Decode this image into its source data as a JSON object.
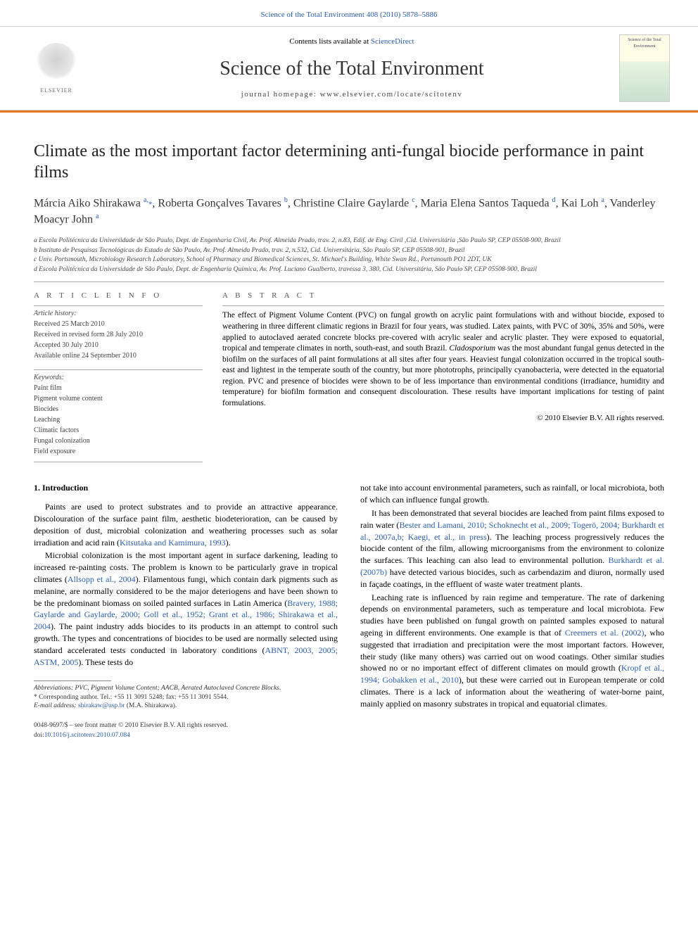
{
  "header": {
    "top_link": "Science of the Total Environment 408 (2010) 5878–5886",
    "contents_prefix": "Contents lists available at ",
    "contents_link": "ScienceDirect",
    "journal_title": "Science of the Total Environment",
    "homepage_prefix": "journal homepage: ",
    "homepage_url": "www.elsevier.com/locate/scitotenv",
    "elsevier_label": "ELSEVIER",
    "cover_title": "Science of the Total Environment"
  },
  "article": {
    "title": "Climate as the most important factor determining anti-fungal biocide performance in paint films",
    "authors_html": "Márcia Aiko Shirakawa <sup>a,</sup><span class='star-icon'>*</span>, Roberta Gonçalves Tavares <sup>b</sup>, Christine Claire Gaylarde <sup>c</sup>, Maria Elena Santos Taqueda <sup>d</sup>, Kai Loh <sup>a</sup>, Vanderley Moacyr John <sup>a</sup>",
    "affiliations": [
      "a Escola Politécnica da Universidade de São Paulo, Dept. de Engenharia Civil, Av. Prof. Almeida Prado, trav. 2, n.83, Edif. de Eng. Civil ,Cid. Universitária ,São Paulo SP, CEP 05508-900, Brazil",
      "b Instituto de Pesquisas Tecnológicas do Estado de São Paulo, Av. Prof. Almeida Prado, trav. 2, n.532, Cid. Universitária, São Paulo SP, CEP 05508-901, Brazil",
      "c Univ. Portsmouth, Microbiology Research Laboratory, School of Pharmacy and Biomedical Sciences, St. Michael's Building, White Swan Rd., Portsmouth PO1 2DT, UK",
      "d Escola Politécnica da Universidade de São Paulo, Dept. de Engenharia Química, Av. Prof. Luciano Gualberto, travessa 3, 380, Cid. Universitária, São Paulo SP, CEP 05508-900, Brazil"
    ]
  },
  "info": {
    "heading": "A R T I C L E   I N F O",
    "history_label": "Article history:",
    "history": [
      "Received 25 March 2010",
      "Received in revised form 28 July 2010",
      "Accepted 30 July 2010",
      "Available online 24 September 2010"
    ],
    "keywords_label": "Keywords:",
    "keywords": [
      "Paint film",
      "Pigment volume content",
      "Biocides",
      "Leaching",
      "Climatic factors",
      "Fungal colonization",
      "Field exposure"
    ]
  },
  "abstract": {
    "heading": "A B S T R A C T",
    "text": "The effect of Pigment Volume Content (PVC) on fungal growth on acrylic paint formulations with and without biocide, exposed to weathering in three different climatic regions in Brazil for four years, was studied. Latex paints, with PVC of 30%, 35% and 50%, were applied to autoclaved aerated concrete blocks pre-covered with acrylic sealer and acrylic plaster. They were exposed to equatorial, tropical and temperate climates in north, south-east, and south Brazil. Cladosporium was the most abundant fungal genus detected in the biofilm on the surfaces of all paint formulations at all sites after four years. Heaviest fungal colonization occurred in the tropical south-east and lightest in the temperate south of the country, but more phototrophs, principally cyanobacteria, were detected in the equatorial region. PVC and presence of biocides were shown to be of less importance than environmental conditions (irradiance, humidity and temperature) for biofilm formation and consequent discolouration. These results have important implications for testing of paint formulations.",
    "copyright": "© 2010 Elsevier B.V. All rights reserved."
  },
  "intro": {
    "heading": "1. Introduction",
    "left_paras": [
      "Paints are used to protect substrates and to provide an attractive appearance. Discolouration of the surface paint film, aesthetic biodeterioration, can be caused by deposition of dust, microbial colonization and weathering processes such as solar irradiation and acid rain (<a class='cite'>Kitsutaka and Kamimura, 1993</a>).",
      "Microbial colonization is the most important agent in surface darkening, leading to increased re-painting costs. The problem is known to be particularly grave in tropical climates (<a class='cite'>Allsopp et al., 2004</a>). Filamentous fungi, which contain dark pigments such as melanine, are normally considered to be the major deteriogens and have been shown to be the predominant biomass on soiled painted surfaces in Latin America (<a class='cite'>Bravery, 1988; Gaylarde and Gaylarde, 2000; Goll et al., 1952; Grant et al., 1986; Shirakawa et al., 2004</a>). The paint industry adds biocides to its products in an attempt to control such growth. The types and concentrations of biocides to be used are normally selected using standard accelerated tests conducted in laboratory conditions (<a class='cite'>ABNT, 2003, 2005; ASTM, 2005</a>). These tests do"
    ],
    "right_paras": [
      "not take into account environmental parameters, such as rainfall, or local microbiota, both of which can influence fungal growth.",
      "It has been demonstrated that several biocides are leached from paint films exposed to rain water (<a class='cite'>Bester and Lamani, 2010; Schoknecht et al., 2009; Togerö, 2004; Burkhardt et al., 2007a,b; Kaegi, et al., in press</a>). The leaching process progressively reduces the biocide content of the film, allowing microorganisms from the environment to colonize the surfaces. This leaching can also lead to environmental pollution. <a class='cite'>Burkhardt et al. (2007b)</a> have detected various biocides, such as carbendazim and diuron, normally used in façade coatings, in the effluent of waste water treatment plants.",
      "Leaching rate is influenced by rain regime and temperature. The rate of darkening depends on environmental parameters, such as temperature and local microbiota. Few studies have been published on fungal growth on painted samples exposed to natural ageing in different environments. One example is that of <a class='cite'>Creemers et al. (2002)</a>, who suggested that irradiation and precipitation were the most important factors. However, their study (like many others) was carried out on wood coatings. Other similar studies showed no or no important effect of different climates on mould growth (<a class='cite'>Kropf et al., 1994; Gobakken et al., 2010</a>), but these were carried out in European temperate or cold climates. There is a lack of information about the weathering of water-borne paint, mainly applied on masonry substrates in tropical and equatorial climates."
    ]
  },
  "footnotes": {
    "abbrev": "Abbreviations: PVC, Pigment Volume Content; AACB, Aerated Autoclaved Concrete Blocks.",
    "corresp": "* Corresponding author. Tel.: +55 11 3091 5248; fax: +55 11 3091 5544.",
    "email_label": "E-mail address: ",
    "email": "shirakaw@usp.br",
    "email_suffix": " (M.A. Shirakawa)."
  },
  "bottom": {
    "line1": "0048-9697/$ – see front matter © 2010 Elsevier B.V. All rights reserved.",
    "doi_prefix": "doi:",
    "doi": "10.1016/j.scitotenv.2010.07.084"
  },
  "colors": {
    "link": "#2a5db0",
    "orange": "#e87722",
    "rule": "#aaaaaa",
    "text": "#000000"
  }
}
